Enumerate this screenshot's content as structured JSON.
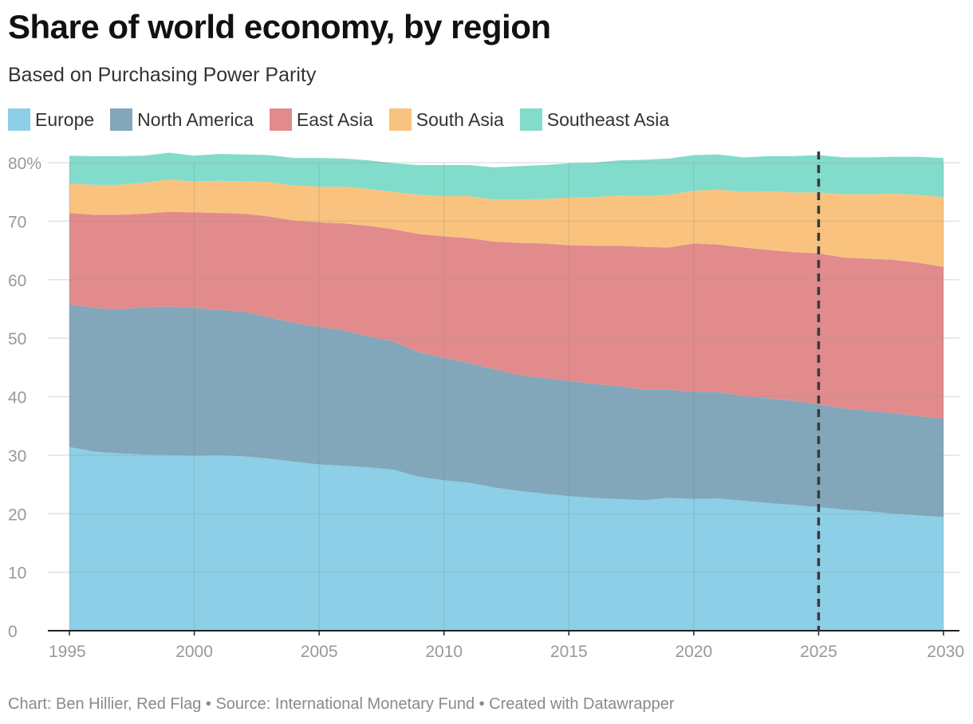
{
  "header": {
    "title": "Share of world economy, by region",
    "subtitle": "Based on Purchasing Power Parity"
  },
  "footer": {
    "source": "Chart: Ben Hillier, Red Flag • Source: International Monetary Fund • Created with Datawrapper"
  },
  "chart_data": {
    "type": "area",
    "stacked": true,
    "title": "Share of world economy, by region",
    "subtitle": "Based on Purchasing Power Parity",
    "ylim": [
      0,
      80
    ],
    "y_ticks": [
      0,
      10,
      20,
      30,
      40,
      50,
      60,
      70,
      80
    ],
    "y_tick_labels": [
      "0",
      "10",
      "20",
      "30",
      "40",
      "50",
      "60",
      "70",
      "80%"
    ],
    "x_ticks": [
      1995,
      2000,
      2005,
      2010,
      2015,
      2020,
      2025,
      2030
    ],
    "x_tick_labels": [
      "1995",
      "2000",
      "2005",
      "2010",
      "2015",
      "2020",
      "2025",
      "2030"
    ],
    "reference_line_x": 2025,
    "x": [
      1995,
      1996,
      1997,
      1998,
      1999,
      2000,
      2001,
      2002,
      2003,
      2004,
      2005,
      2006,
      2007,
      2008,
      2009,
      2010,
      2011,
      2012,
      2013,
      2014,
      2015,
      2016,
      2017,
      2018,
      2019,
      2020,
      2021,
      2022,
      2023,
      2024,
      2025,
      2026,
      2027,
      2028,
      2029,
      2030
    ],
    "series": [
      {
        "name": "Europe",
        "color": "#8ccfe7",
        "values": [
          31.4,
          30.6,
          30.3,
          30.1,
          30.0,
          29.9,
          30.0,
          29.8,
          29.4,
          28.9,
          28.4,
          28.2,
          27.9,
          27.5,
          26.3,
          25.7,
          25.3,
          24.5,
          23.9,
          23.4,
          23.0,
          22.7,
          22.5,
          22.3,
          22.7,
          22.5,
          22.6,
          22.2,
          21.8,
          21.5,
          21.1,
          20.7,
          20.4,
          20.0,
          19.7,
          19.4
        ]
      },
      {
        "name": "North America",
        "color": "#82a7ba",
        "values": [
          24.4,
          24.6,
          24.6,
          25.2,
          25.4,
          25.3,
          24.8,
          24.7,
          24.2,
          23.7,
          23.5,
          23.1,
          22.4,
          21.9,
          21.3,
          20.9,
          20.5,
          20.2,
          19.8,
          19.8,
          19.7,
          19.5,
          19.3,
          18.9,
          18.5,
          18.3,
          18.2,
          17.9,
          17.9,
          17.8,
          17.6,
          17.3,
          17.2,
          17.2,
          17.0,
          16.8
        ]
      },
      {
        "name": "East Asia",
        "color": "#e18b8c",
        "values": [
          15.6,
          15.9,
          16.2,
          16.0,
          16.2,
          16.3,
          16.6,
          16.8,
          17.2,
          17.5,
          17.9,
          18.3,
          18.9,
          19.2,
          20.2,
          20.8,
          21.3,
          21.8,
          22.6,
          23.0,
          23.2,
          23.6,
          24.0,
          24.4,
          24.3,
          25.4,
          25.2,
          25.4,
          25.4,
          25.4,
          25.8,
          25.8,
          26.0,
          26.2,
          26.2,
          26.0
        ]
      },
      {
        "name": "South Asia",
        "color": "#f9c37f",
        "values": [
          5.0,
          5.1,
          5.1,
          5.3,
          5.5,
          5.3,
          5.5,
          5.5,
          5.9,
          6.0,
          6.1,
          6.3,
          6.3,
          6.4,
          6.7,
          6.9,
          7.2,
          7.2,
          7.4,
          7.6,
          8.1,
          8.3,
          8.6,
          8.7,
          9.0,
          9.0,
          9.4,
          9.5,
          10.0,
          10.2,
          10.4,
          10.8,
          11.0,
          11.3,
          11.6,
          11.9
        ]
      },
      {
        "name": "Southeast Asia",
        "color": "#82dccb",
        "values": [
          4.8,
          4.9,
          4.9,
          4.6,
          4.6,
          4.4,
          4.6,
          4.6,
          4.6,
          4.7,
          4.9,
          4.8,
          4.9,
          4.9,
          5.1,
          5.3,
          5.3,
          5.5,
          5.7,
          5.8,
          5.9,
          5.9,
          6.0,
          6.2,
          6.2,
          6.1,
          6.0,
          5.9,
          6.0,
          6.2,
          6.4,
          6.3,
          6.3,
          6.3,
          6.5,
          6.7
        ]
      }
    ]
  }
}
